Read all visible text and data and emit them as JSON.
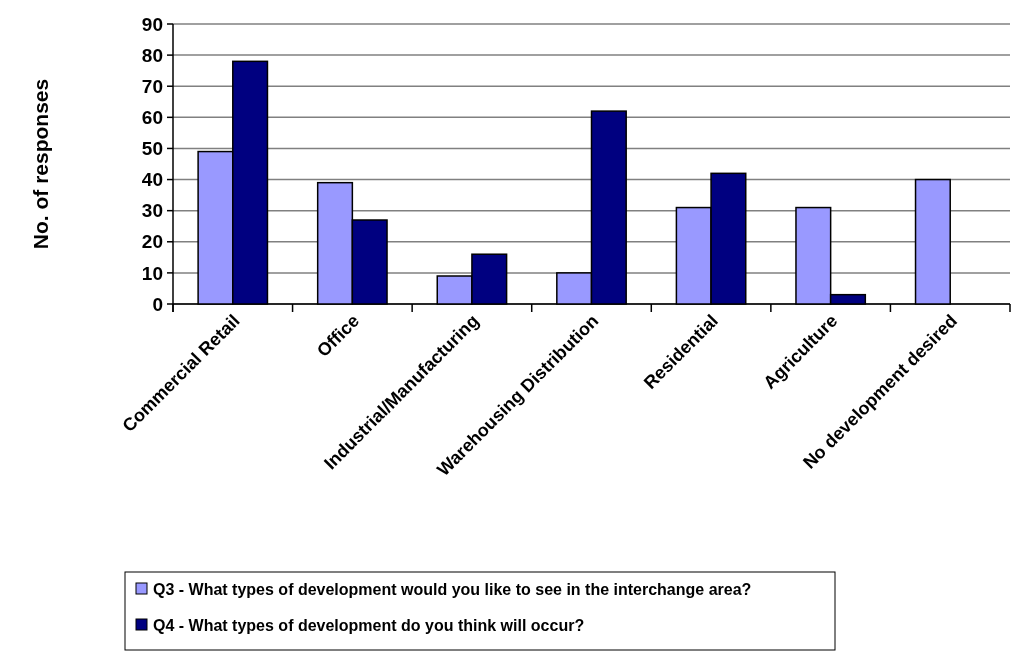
{
  "chart_data": {
    "type": "bar",
    "ylabel": "No. of responses",
    "categories": [
      "Commercial Retail",
      "Office",
      "Industrial/Manufacturing",
      "Warehousing Distribution",
      "Residential",
      "Agriculture",
      "No development desired"
    ],
    "series": [
      {
        "name": "Q3 - What types of development would you like to see in the interchange area?",
        "color": "#9999ff",
        "values": [
          49,
          39,
          9,
          10,
          31,
          31,
          40
        ]
      },
      {
        "name": "Q4 - What types of development do you think will occur?",
        "color": "#000080",
        "values": [
          78,
          27,
          16,
          62,
          42,
          3,
          null
        ]
      }
    ],
    "ylim": [
      0,
      90
    ],
    "yticks": [
      0,
      10,
      20,
      30,
      40,
      50,
      60,
      70,
      80,
      90
    ],
    "grid": "y",
    "legend": "bottom"
  }
}
